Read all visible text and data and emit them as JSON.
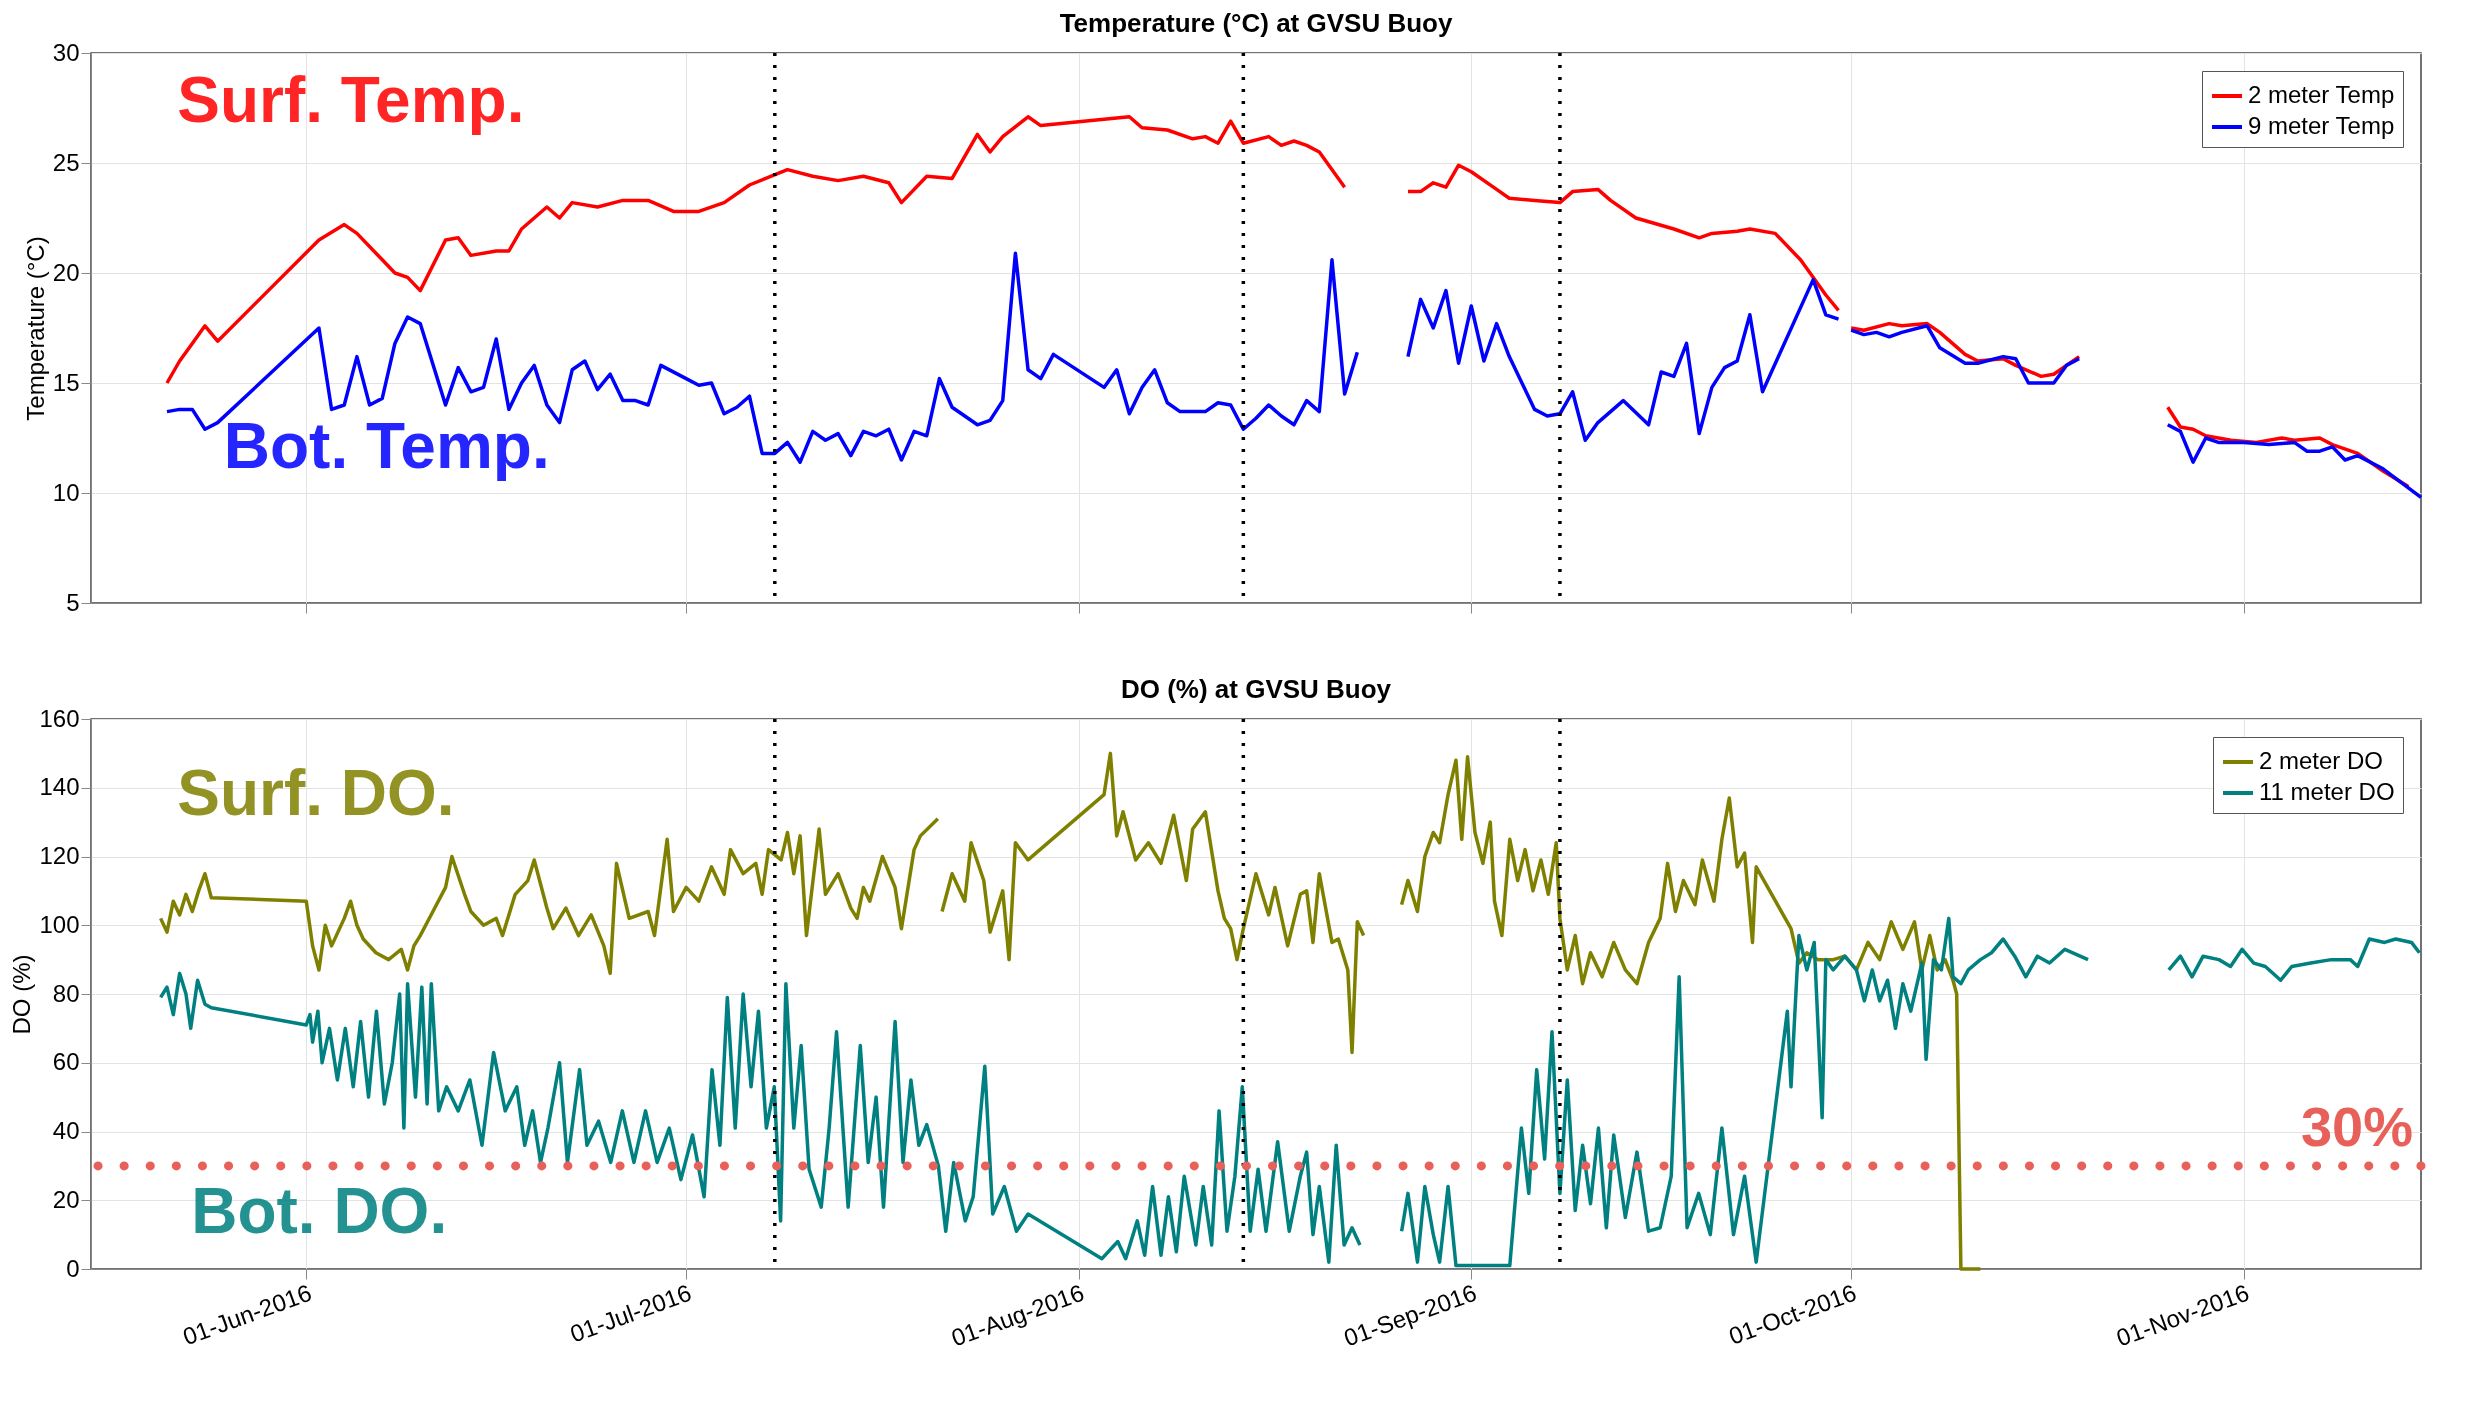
{
  "chart_data": [
    {
      "type": "line",
      "title": "Temperature (°C) at GVSU Buoy",
      "ylabel": "Temperature (°C)",
      "xlim": [
        "2016-05-15",
        "2016-11-15"
      ],
      "xticks": [
        {
          "value": "2016-06-01",
          "label": null
        },
        {
          "value": "2016-07-01",
          "label": null
        },
        {
          "value": "2016-08-01",
          "label": null
        },
        {
          "value": "2016-09-01",
          "label": null
        },
        {
          "value": "2016-10-01",
          "label": null
        },
        {
          "value": "2016-11-01",
          "label": null
        }
      ],
      "ylim": [
        5,
        30
      ],
      "yticks": [
        5,
        10,
        15,
        20,
        25,
        30
      ],
      "grid": true,
      "legend": "top right",
      "tick_labels": "y",
      "series": [
        {
          "name": "2 meter Temp",
          "color": "#ff0000",
          "x": [
            "2016-05-21",
            "2016-05-22",
            "2016-05-23",
            "2016-05-24",
            "2016-05-25",
            "2016-06-02",
            "2016-06-04",
            "2016-06-05",
            "2016-06-07",
            "2016-06-08",
            "2016-06-09",
            "2016-06-10",
            "2016-06-12",
            "2016-06-13",
            "2016-06-14",
            "2016-06-16",
            "2016-06-17",
            "2016-06-18",
            "2016-06-20",
            "2016-06-21",
            "2016-06-22",
            "2016-06-24",
            "2016-06-26",
            "2016-06-28",
            "2016-06-30",
            "2016-07-02",
            "2016-07-04",
            "2016-07-06",
            "2016-07-09",
            "2016-07-11",
            "2016-07-13",
            "2016-07-15",
            "2016-07-17",
            "2016-07-18",
            "2016-07-20",
            "2016-07-22",
            "2016-07-24",
            "2016-07-25",
            "2016-07-26",
            "2016-07-28",
            "2016-07-29",
            "2016-08-05",
            "2016-08-06",
            "2016-08-08",
            "2016-08-10",
            "2016-08-11",
            "2016-08-12",
            "2016-08-13",
            "2016-08-14",
            "2016-08-16",
            "2016-08-17",
            "2016-08-18",
            "2016-08-19",
            "2016-08-20",
            "2016-08-22",
            "2016-08-25",
            "2016-08-27",
            "2016-08-28",
            "2016-08-29",
            "2016-08-30",
            "2016-08-31",
            "2016-09-01",
            "2016-09-03",
            "2016-09-04",
            "2016-09-06",
            "2016-09-08",
            "2016-09-09",
            "2016-09-11",
            "2016-09-12",
            "2016-09-14",
            "2016-09-17",
            "2016-09-19",
            "2016-09-20",
            "2016-09-22",
            "2016-09-23",
            "2016-09-25",
            "2016-09-27",
            "2016-09-29",
            "2016-09-30",
            "2016-09-30T12:00",
            "2016-10-01",
            "2016-10-02",
            "2016-10-04",
            "2016-10-05",
            "2016-10-07",
            "2016-10-08",
            "2016-10-10",
            "2016-10-11",
            "2016-10-13",
            "2016-10-14",
            "2016-10-16",
            "2016-10-17",
            "2016-10-18",
            "2016-10-19",
            "2016-10-22",
            "2016-10-26",
            "2016-10-27",
            "2016-10-28",
            "2016-10-29",
            "2016-10-31",
            "2016-11-02",
            "2016-11-04",
            "2016-11-05",
            "2016-11-07",
            "2016-11-08",
            "2016-11-10",
            "2016-11-12",
            "2016-11-14"
          ],
          "values": [
            15,
            16,
            16.8,
            17.6,
            16.9,
            21.5,
            22.2,
            21.8,
            20.6,
            20,
            19.8,
            19.2,
            21.5,
            21.6,
            20.8,
            21,
            21,
            22,
            23,
            22.5,
            23.2,
            23,
            23.3,
            23.3,
            22.8,
            22.8,
            23.2,
            24,
            24.7,
            24.4,
            24.2,
            24.4,
            24.1,
            23.2,
            24.4,
            24.3,
            26.3,
            25.5,
            26.2,
            27.1,
            26.7,
            27.1,
            26.6,
            26.5,
            26.1,
            26.2,
            25.9,
            26.9,
            25.9,
            26.2,
            25.8,
            26,
            25.8,
            25.5,
            23.9,
            null,
            23.7,
            23.7,
            24.1,
            23.9,
            24.9,
            24.6,
            23.8,
            23.4,
            23.3,
            23.2,
            23.7,
            23.8,
            23.3,
            22.5,
            22,
            21.6,
            21.8,
            21.9,
            22,
            21.8,
            20.6,
            19,
            18.3,
            null,
            17.5,
            17.4,
            17.7,
            17.6,
            17.7,
            17.3,
            16.3,
            16,
            16.1,
            15.8,
            15.3,
            15.4,
            15.8,
            16.2,
            null,
            13.9,
            13,
            12.9,
            12.6,
            12.4,
            12.3,
            12.5,
            12.4,
            12.5,
            12.2,
            11.8,
            11,
            10.3
          ]
        },
        {
          "name": "9 meter Temp",
          "color": "#0000ff",
          "x": [
            "2016-05-21",
            "2016-05-22",
            "2016-05-23",
            "2016-05-24",
            "2016-05-25",
            "2016-06-02",
            "2016-06-03",
            "2016-06-04",
            "2016-06-05",
            "2016-06-06",
            "2016-06-07",
            "2016-06-08",
            "2016-06-09",
            "2016-06-10",
            "2016-06-12",
            "2016-06-13",
            "2016-06-14",
            "2016-06-15",
            "2016-06-16",
            "2016-06-17",
            "2016-06-18",
            "2016-06-19",
            "2016-06-20",
            "2016-06-21",
            "2016-06-22",
            "2016-06-23",
            "2016-06-24",
            "2016-06-25",
            "2016-06-26",
            "2016-06-27",
            "2016-06-28",
            "2016-06-29",
            "2016-07-01",
            "2016-07-02",
            "2016-07-03",
            "2016-07-04",
            "2016-07-05",
            "2016-07-06",
            "2016-07-07",
            "2016-07-08",
            "2016-07-09",
            "2016-07-10",
            "2016-07-11",
            "2016-07-12",
            "2016-07-13",
            "2016-07-14",
            "2016-07-15",
            "2016-07-16",
            "2016-07-17",
            "2016-07-18",
            "2016-07-19",
            "2016-07-20",
            "2016-07-21",
            "2016-07-22",
            "2016-07-23",
            "2016-07-24",
            "2016-07-25",
            "2016-07-26",
            "2016-07-27",
            "2016-07-28",
            "2016-07-29",
            "2016-07-30",
            "2016-08-03",
            "2016-08-04",
            "2016-08-05",
            "2016-08-06",
            "2016-08-07",
            "2016-08-08",
            "2016-08-09",
            "2016-08-11",
            "2016-08-12",
            "2016-08-13",
            "2016-08-14",
            "2016-08-15",
            "2016-08-16",
            "2016-08-17",
            "2016-08-18",
            "2016-08-19",
            "2016-08-20",
            "2016-08-21",
            "2016-08-22",
            "2016-08-23",
            "2016-08-25",
            "2016-08-27",
            "2016-08-28",
            "2016-08-29",
            "2016-08-30",
            "2016-08-31",
            "2016-09-01",
            "2016-09-02",
            "2016-09-03",
            "2016-09-04",
            "2016-09-06",
            "2016-09-07",
            "2016-09-08",
            "2016-09-09",
            "2016-09-10",
            "2016-09-11",
            "2016-09-13",
            "2016-09-15",
            "2016-09-16",
            "2016-09-17",
            "2016-09-18",
            "2016-09-19",
            "2016-09-20",
            "2016-09-21",
            "2016-09-22",
            "2016-09-23",
            "2016-09-24",
            "2016-09-28",
            "2016-09-29",
            "2016-09-30",
            "2016-09-30T12:00",
            "2016-10-01",
            "2016-10-02",
            "2016-10-03",
            "2016-10-04",
            "2016-10-05",
            "2016-10-07",
            "2016-10-08",
            "2016-10-10",
            "2016-10-11",
            "2016-10-13",
            "2016-10-14",
            "2016-10-15",
            "2016-10-16",
            "2016-10-17",
            "2016-10-18",
            "2016-10-19",
            "2016-10-22",
            "2016-10-26",
            "2016-10-27",
            "2016-10-28",
            "2016-10-29",
            "2016-10-30",
            "2016-11-01",
            "2016-11-03",
            "2016-11-05",
            "2016-11-06",
            "2016-11-07",
            "2016-11-08",
            "2016-11-09",
            "2016-11-10",
            "2016-11-12",
            "2016-11-15"
          ],
          "values": [
            13.7,
            13.8,
            13.8,
            12.9,
            13.2,
            17.5,
            13.8,
            14,
            16.2,
            14,
            14.3,
            16.8,
            18,
            17.7,
            14,
            15.7,
            14.6,
            14.8,
            17,
            13.8,
            15,
            15.8,
            14,
            13.2,
            15.6,
            16,
            14.7,
            15.4,
            14.2,
            14.2,
            14,
            15.8,
            15.2,
            14.9,
            15,
            13.6,
            13.9,
            14.4,
            11.8,
            11.8,
            12.3,
            11.4,
            12.8,
            12.4,
            12.7,
            11.7,
            12.8,
            12.6,
            12.9,
            11.5,
            12.8,
            12.6,
            15.2,
            13.9,
            13.5,
            13.1,
            13.3,
            14.2,
            20.9,
            15.6,
            15.2,
            16.3,
            14.8,
            15.6,
            13.6,
            14.8,
            15.6,
            14.1,
            13.7,
            13.7,
            14.1,
            14,
            12.9,
            13.4,
            14,
            13.5,
            13.1,
            14.2,
            13.7,
            20.6,
            14.5,
            16.4,
            null,
            16.2,
            18.8,
            17.5,
            19.2,
            15.9,
            18.5,
            16,
            17.7,
            16.2,
            13.8,
            13.5,
            13.6,
            14.6,
            12.4,
            13.2,
            14.2,
            13.1,
            15.5,
            15.3,
            16.8,
            12.7,
            14.8,
            15.7,
            16,
            18.1,
            14.6,
            19.7,
            18.1,
            17.9,
            null,
            17.4,
            17.2,
            17.3,
            17.1,
            17.3,
            17.6,
            16.6,
            15.9,
            15.9,
            16.2,
            16.1,
            15,
            15,
            15,
            15.8,
            16.1,
            null,
            13.1,
            12.8,
            11.4,
            12.5,
            12.3,
            12.3,
            12.2,
            12.3,
            11.9,
            11.9,
            12.1,
            11.5,
            11.7,
            11.1,
            9.8
          ]
        }
      ],
      "annotations": [
        "Surf. Temp.",
        "Bot. Temp."
      ],
      "ref_lines": [
        {
          "axis": "x",
          "value": "2016-07-08",
          "color": "#000000",
          "line_style": "dotted"
        },
        {
          "axis": "x",
          "value": "2016-08-14",
          "color": "#000000",
          "line_style": "dotted"
        },
        {
          "axis": "x",
          "value": "2016-09-08",
          "color": "#000000",
          "line_style": "dotted"
        }
      ]
    },
    {
      "type": "line",
      "title": "DO (%) at GVSU Buoy",
      "ylabel": "DO (%)",
      "xlim": [
        "2016-05-15",
        "2016-11-15"
      ],
      "xticks": [
        {
          "value": "2016-06-01",
          "label": "01-Jun-2016"
        },
        {
          "value": "2016-07-01",
          "label": "01-Jul-2016"
        },
        {
          "value": "2016-08-01",
          "label": "01-Aug-2016"
        },
        {
          "value": "2016-09-01",
          "label": "01-Sep-2016"
        },
        {
          "value": "2016-10-01",
          "label": "01-Oct-2016"
        },
        {
          "value": "2016-11-01",
          "label": "01-Nov-2016"
        }
      ],
      "ylim": [
        0,
        160
      ],
      "yticks": [
        0,
        20,
        40,
        60,
        80,
        100,
        120,
        140,
        160
      ],
      "grid": true,
      "legend": "top right",
      "series": [
        {
          "name": "2 meter DO",
          "color": "#808000",
          "x": [
            "2016-05-20T12:00",
            "2016-05-21",
            "2016-05-21T12:00",
            "2016-05-22",
            "2016-05-22T12:00",
            "2016-05-23",
            "2016-05-23T12:00",
            "2016-05-24",
            "2016-05-24T12:00",
            "2016-06-01",
            "2016-06-01T12:00",
            "2016-06-02",
            "2016-06-02T12:00",
            "2016-06-03",
            "2016-06-04",
            "2016-06-04T12:00",
            "2016-06-05",
            "2016-06-05T12:00",
            "2016-06-06T12:00",
            "2016-06-07T12:00",
            "2016-06-08T12:00",
            "2016-06-09",
            "2016-06-09T12:00",
            "2016-06-10",
            "2016-06-11",
            "2016-06-12",
            "2016-06-12T12:00",
            "2016-06-13T12:00",
            "2016-06-14",
            "2016-06-15",
            "2016-06-16",
            "2016-06-16T12:00",
            "2016-06-17T12:00",
            "2016-06-18T12:00",
            "2016-06-19",
            "2016-06-20",
            "2016-06-20T12:00",
            "2016-06-21T12:00",
            "2016-06-22T12:00",
            "2016-06-23T12:00",
            "2016-06-24T12:00",
            "2016-06-25",
            "2016-06-25T12:00",
            "2016-06-26T12:00",
            "2016-06-28",
            "2016-06-28T12:00",
            "2016-06-29T12:00",
            "2016-06-30",
            "2016-07-01",
            "2016-07-02",
            "2016-07-03",
            "2016-07-04",
            "2016-07-04T12:00",
            "2016-07-05T12:00",
            "2016-07-06T12:00",
            "2016-07-07",
            "2016-07-07T12:00",
            "2016-07-08T12:00",
            "2016-07-09",
            "2016-07-09T12:00",
            "2016-07-10",
            "2016-07-10T12:00",
            "2016-07-11T12:00",
            "2016-07-12",
            "2016-07-13",
            "2016-07-14",
            "2016-07-14T12:00",
            "2016-07-15",
            "2016-07-15T12:00",
            "2016-07-16T12:00",
            "2016-07-17T12:00",
            "2016-07-18",
            "2016-07-19",
            "2016-07-19T12:00",
            "2016-07-20T21:00",
            "2016-07-21T00:00",
            "2016-07-21T05:00",
            "2016-07-22",
            "2016-07-23",
            "2016-07-23T12:00",
            "2016-07-24T12:00",
            "2016-07-25",
            "2016-07-26",
            "2016-07-26T12:00",
            "2016-07-27",
            "2016-07-28",
            "2016-08-03",
            "2016-08-03T12:00",
            "2016-08-04",
            "2016-08-04T12:00",
            "2016-08-05T12:00",
            "2016-08-06T12:00",
            "2016-08-07T12:00",
            "2016-08-08T12:00",
            "2016-08-09T12:00",
            "2016-08-10",
            "2016-08-11",
            "2016-08-12",
            "2016-08-12T12:00",
            "2016-08-13",
            "2016-08-13T12:00",
            "2016-08-14",
            "2016-08-15",
            "2016-08-16",
            "2016-08-16T12:00",
            "2016-08-17T12:00",
            "2016-08-18T12:00",
            "2016-08-19",
            "2016-08-19T12:00",
            "2016-08-20",
            "2016-08-21",
            "2016-08-21T12:00",
            "2016-08-22T06:00",
            "2016-08-22T14:00",
            "2016-08-23",
            "2016-08-23T12:00",
            "2016-08-25",
            "2016-08-26T12:00",
            "2016-08-27",
            "2016-08-27T18:00",
            "2016-08-28T08:00",
            "2016-08-29",
            "2016-08-29T12:00",
            "2016-08-30T04:00",
            "2016-08-30T19:00",
            "2016-08-31T06:00",
            "2016-08-31T17:00",
            "2016-09-01T07:00",
            "2016-09-01T22:00",
            "2016-09-02T12:00",
            "2016-09-02T20:00",
            "2016-09-03T10:00",
            "2016-09-04T01:00",
            "2016-09-04T16:00",
            "2016-09-05T06:00",
            "2016-09-05T21:00",
            "2016-09-06T12:00",
            "2016-09-07T02:00",
            "2016-09-07T17:00",
            "2016-09-08T00:00",
            "2016-09-08T14:00",
            "2016-09-09T05:00",
            "2016-09-09T19:00",
            "2016-09-10T10:00",
            "2016-09-11T08:00",
            "2016-09-12T06:00",
            "2016-09-13T04:00",
            "2016-09-14T02:00",
            "2016-09-15T00:00",
            "2016-09-15T22:00",
            "2016-09-16T12:00",
            "2016-09-17T03:00",
            "2016-09-17T18:00",
            "2016-09-18T16:00",
            "2016-09-19T06:00",
            "2016-09-20T04:00",
            "2016-09-20T19:00",
            "2016-09-21T09:00",
            "2016-09-22T00:00",
            "2016-09-22T14:00",
            "2016-09-23T05:00",
            "2016-09-23T12:00",
            "2016-09-26T06:00",
            "2016-09-26T21:00",
            "2016-09-27T12:00",
            "2016-09-28T09:00",
            "2016-09-29T14:00",
            "2016-09-30T12:00",
            "2016-10-01T10:00",
            "2016-10-02T08:00",
            "2016-10-03T06:00",
            "2016-10-04T04:00",
            "2016-10-05T02:00",
            "2016-10-06T00:00",
            "2016-10-06T14:00",
            "2016-10-07T05:00",
            "2016-10-07T19:00",
            "2016-10-08T10:00",
            "2016-10-09T01:00",
            "2016-10-09T08:00",
            "2016-10-09T16:00",
            "2016-10-11T05:00"
          ],
          "values": [
            102,
            98,
            107,
            103,
            109,
            104,
            110,
            115,
            108,
            107,
            94,
            87,
            100,
            94,
            102,
            107,
            100,
            96,
            92,
            90,
            93,
            87,
            94,
            97,
            104,
            111,
            120,
            109,
            104,
            100,
            102,
            97,
            109,
            113,
            119,
            105,
            99,
            105,
            97,
            103,
            94,
            86,
            118,
            102,
            104,
            97,
            125,
            104,
            111,
            107,
            117,
            109,
            122,
            115,
            118,
            109,
            122,
            119,
            127,
            115,
            126,
            97,
            128,
            109,
            115,
            105,
            102,
            111,
            107,
            120,
            111,
            99,
            122,
            126,
            131,
            null,
            104,
            115,
            107,
            124,
            113,
            98,
            110,
            90,
            124,
            119,
            138,
            150,
            126,
            133,
            119,
            124,
            118,
            132,
            113,
            128,
            133,
            110,
            102,
            99,
            90,
            99,
            115,
            103,
            111,
            94,
            109,
            110,
            95,
            115,
            95,
            96,
            87,
            63,
            101,
            97,
            null,
            106,
            113,
            104,
            120,
            127,
            124,
            138,
            148,
            125,
            149,
            127,
            118,
            130,
            107,
            97,
            125,
            113,
            122,
            110,
            119,
            109,
            124,
            102,
            87,
            97,
            83,
            92,
            85,
            95,
            87,
            83,
            95,
            102,
            118,
            104,
            113,
            106,
            119,
            107,
            125,
            137,
            117,
            121,
            95,
            117,
            99,
            89,
            92,
            90,
            90,
            91,
            87,
            95,
            90,
            101,
            93,
            101,
            87,
            97,
            87,
            90,
            84,
            80,
            0,
            0
          ]
        },
        {
          "name": "11 meter DO",
          "color": "#008080",
          "x": [
            "2016-05-20T12:00",
            "2016-05-21",
            "2016-05-21T12:00",
            "2016-05-22",
            "2016-05-22T12:00",
            "2016-05-22T21:00",
            "2016-05-23T10:00",
            "2016-05-24",
            "2016-05-24T12:00",
            "2016-06-01",
            "2016-06-01T07:00",
            "2016-06-01T12:00",
            "2016-06-01T22:00",
            "2016-06-02T06:00",
            "2016-06-02T20:00",
            "2016-06-03T11:00",
            "2016-06-04T02:00",
            "2016-06-04T17:00",
            "2016-06-05T07:00",
            "2016-06-05T22:00",
            "2016-06-06T13:00",
            "2016-06-07T04:00",
            "2016-06-07T19:00",
            "2016-06-08T09:00",
            "2016-06-08T17:00",
            "2016-06-09",
            "2016-06-09T15:00",
            "2016-06-10T03:00",
            "2016-06-10T13:00",
            "2016-06-10T21:00",
            "2016-06-11T11:00",
            "2016-06-12T02:00",
            "2016-06-13",
            "2016-06-13T22:00",
            "2016-06-14T21:00",
            "2016-06-15T19:00",
            "2016-06-16T17:00",
            "2016-06-17T15:00",
            "2016-06-18T06:00",
            "2016-06-18T21:00",
            "2016-06-19T12:00",
            "2016-06-20T02:00",
            "2016-06-21",
            "2016-06-21T15:00",
            "2016-06-22T14:00",
            "2016-06-23T04:00",
            "2016-06-24T02:00",
            "2016-06-25T01:00",
            "2016-06-25T23:00",
            "2016-06-26T21:00",
            "2016-06-27T19:00",
            "2016-06-28T17:00",
            "2016-06-29T16:00",
            "2016-06-30T14:00",
            "2016-07-01T12:00",
            "2016-07-02T10:00",
            "2016-07-03T01:00",
            "2016-07-03T16:00",
            "2016-07-04T06:00",
            "2016-07-04T21:00",
            "2016-07-05T12:00",
            "2016-07-06T03:00",
            "2016-07-06T17:00",
            "2016-07-07T08:00",
            "2016-07-07T23:00",
            "2016-07-08T11:00",
            "2016-07-08T21:00",
            "2016-07-09T12:00",
            "2016-07-10T02:00",
            "2016-07-10T17:00",
            "2016-07-11T16:00",
            "2016-07-12T07:00",
            "2016-07-12T21:00",
            "2016-07-13T19:00",
            "2016-07-14T18:00",
            "2016-07-15T09:00",
            "2016-07-16T00:00",
            "2016-07-16T14:00",
            "2016-07-17T12:00",
            "2016-07-18T03:00",
            "2016-07-18T18:00",
            "2016-07-19T09:00",
            "2016-07-20T00:00",
            "2016-07-20T22:00",
            "2016-07-21T12:00",
            "2016-07-22T03:00",
            "2016-07-23T01:00",
            "2016-07-23T16:00",
            "2016-07-24T14:00",
            "2016-07-25T05:00",
            "2016-07-26T03:00",
            "2016-07-27T02:00",
            "2016-07-28",
            "2016-08-02T20:00",
            "2016-08-04T02:00",
            "2016-08-04T17:00",
            "2016-08-05T15:00",
            "2016-08-06T05:00",
            "2016-08-06T20:00",
            "2016-08-07T12:00",
            "2016-08-08T02:00",
            "2016-08-08T17:00",
            "2016-08-09T08:00",
            "2016-08-10T06:00",
            "2016-08-10T20:00",
            "2016-08-11T12:00",
            "2016-08-12T02:00",
            "2016-08-12T17:00",
            "2016-08-13T08:00",
            "2016-08-13T22:00",
            "2016-08-14T13:00",
            "2016-08-15T04:00",
            "2016-08-15T19:00",
            "2016-08-16T17:00",
            "2016-08-17T15:00",
            "2016-08-18T12:00",
            "2016-08-19",
            "2016-08-19T12:00",
            "2016-08-20",
            "2016-08-20T18:00",
            "2016-08-21T08:00",
            "2016-08-21T23:00",
            "2016-08-22T14:00",
            "2016-08-23T05:00",
            "2016-08-25",
            "2016-08-26T12:00",
            "2016-08-27",
            "2016-08-27T18:00",
            "2016-08-28T08:00",
            "2016-08-29",
            "2016-08-29T12:00",
            "2016-08-30T04:00",
            "2016-08-30T19:00",
            "2016-09-01",
            "2016-09-02T20:00",
            "2016-09-04T01:00",
            "2016-09-04T23:00",
            "2016-09-05T13:00",
            "2016-09-06T04:00",
            "2016-09-06T19:00",
            "2016-09-07T09:00",
            "2016-09-08T00:00",
            "2016-09-08T14:00",
            "2016-09-09T05:00",
            "2016-09-09T19:00",
            "2016-09-10T10:00",
            "2016-09-11T01:00",
            "2016-09-11T16:00",
            "2016-09-12T06:00",
            "2016-09-13T04:00",
            "2016-09-14T02:00",
            "2016-09-15T00:00",
            "2016-09-15T22:00",
            "2016-09-16T19:00",
            "2016-09-17T10:00",
            "2016-09-18T01:00",
            "2016-09-18T23:00",
            "2016-09-19T21:00",
            "2016-09-20T19:00",
            "2016-09-21T17:00",
            "2016-09-22T14:00",
            "2016-09-23T12:00",
            "2016-09-25T23:00",
            "2016-09-26T06:00",
            "2016-09-26T21:00",
            "2016-09-27T12:00",
            "2016-09-28T02:00",
            "2016-09-28T17:00",
            "2016-09-29T00:00",
            "2016-09-29T14:00",
            "2016-09-30T12:00",
            "2016-10-01T10:00",
            "2016-10-02T01:00",
            "2016-10-02T16:00",
            "2016-10-03T06:00",
            "2016-10-03T21:00",
            "2016-10-04T12:00",
            "2016-10-05T02:00",
            "2016-10-05T17:00",
            "2016-10-06T14:00",
            "2016-10-06T22:00",
            "2016-10-07T12:00",
            "2016-10-08T03:00",
            "2016-10-08T17:00",
            "2016-10-09T01:00",
            "2016-10-09T16:00",
            "2016-10-10T06:00",
            "2016-10-11T05:00",
            "2016-10-12T02:00",
            "2016-10-13T00:00",
            "2016-10-13T22:00",
            "2016-10-14T19:00",
            "2016-10-15T17:00",
            "2016-10-16T16:00",
            "2016-10-17T21:00",
            "2016-10-19T17:00",
            "2016-10-22",
            "2016-10-26T02:00",
            "2016-10-27T00:00",
            "2016-10-27T22:00",
            "2016-10-28T19:00",
            "2016-10-30T01:00",
            "2016-10-30T23:00",
            "2016-10-31T21:00",
            "2016-11-01T19:00",
            "2016-11-02T17:00",
            "2016-11-03T22:00",
            "2016-11-04T19:00",
            "2016-11-06T07:00",
            "2016-11-07T22:00",
            "2016-11-09T10:00",
            "2016-11-10T00:00",
            "2016-11-10T22:00",
            "2016-11-12T03:00",
            "2016-11-13T00:00",
            "2016-11-14T06:00",
            "2016-11-14T21:00"
          ],
          "values": [
            79,
            82,
            74,
            86,
            80,
            70,
            84,
            77,
            76,
            71,
            74,
            66,
            75,
            60,
            70,
            55,
            70,
            53,
            72,
            50,
            75,
            48,
            60,
            80,
            41,
            83,
            50,
            82,
            48,
            83,
            46,
            53,
            46,
            55,
            36,
            63,
            46,
            53,
            36,
            46,
            31,
            41,
            60,
            31,
            58,
            36,
            43,
            31,
            46,
            31,
            46,
            31,
            41,
            26,
            39,
            21,
            58,
            36,
            79,
            41,
            80,
            53,
            75,
            41,
            53,
            14,
            83,
            41,
            65,
            29,
            18,
            41,
            69,
            18,
            65,
            31,
            50,
            18,
            72,
            31,
            55,
            36,
            42,
            30,
            11,
            31,
            14,
            21,
            59,
            16,
            24,
            11,
            16,
            3,
            8,
            3,
            14,
            4,
            24,
            4,
            21,
            5,
            27,
            7,
            24,
            7,
            46,
            11,
            27,
            53,
            11,
            29,
            11,
            37,
            11,
            27,
            34,
            10,
            24,
            2,
            36,
            7,
            12,
            7,
            null,
            11,
            22,
            2,
            24,
            10,
            2,
            24,
            1,
            1,
            1,
            1,
            41,
            22,
            58,
            32,
            69,
            22,
            55,
            17,
            36,
            19,
            41,
            12,
            39,
            15,
            34,
            11,
            12,
            27,
            85,
            12,
            22,
            10,
            41,
            10,
            27,
            2,
            75,
            53,
            97,
            87,
            95,
            44,
            90,
            87,
            91,
            87,
            78,
            87,
            78,
            84,
            70,
            83,
            75,
            89,
            61,
            90,
            87,
            102,
            85,
            83,
            87,
            90,
            92,
            96,
            91,
            85,
            91,
            89,
            93,
            90,
            null,
            87,
            91,
            85,
            91,
            90,
            88,
            93,
            89,
            88,
            84,
            88,
            89,
            90,
            90,
            88,
            96,
            95,
            96,
            95,
            92
          ]
        }
      ],
      "annotations": [
        "Surf. DO.",
        "Bot. DO."
      ],
      "ref_lines": [
        {
          "axis": "x",
          "value": "2016-07-08",
          "color": "#000000",
          "line_style": "dotted"
        },
        {
          "axis": "x",
          "value": "2016-08-14",
          "color": "#000000",
          "line_style": "dotted"
        },
        {
          "axis": "x",
          "value": "2016-09-08",
          "color": "#000000",
          "line_style": "dotted"
        },
        {
          "axis": "y",
          "value": 30,
          "label": "30%",
          "color": "#e8605a",
          "line_style": "dotted"
        }
      ]
    }
  ]
}
